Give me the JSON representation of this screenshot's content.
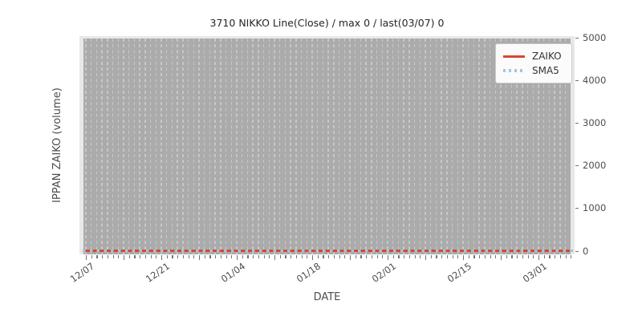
{
  "chart_data": {
    "type": "line",
    "title": "3710 NIKKO Line(Close) / max 0 / last(03/07) 0",
    "xlabel": "DATE",
    "ylabel": "IPPAN ZAIKO (volume)",
    "x_range": {
      "start": "12/07",
      "end": "03/07",
      "freq": "daily",
      "n_points": 91
    },
    "x_major_tick_labels": [
      "12/07",
      "12/21",
      "01/04",
      "01/18",
      "02/01",
      "02/15",
      "03/01"
    ],
    "x_major_tick_day_indices": [
      0,
      14,
      28,
      42,
      56,
      70,
      84
    ],
    "x_minor_tick_interval_days": 1,
    "x_midweek_tick_interval_days": 7,
    "ylim": [
      0,
      5000
    ],
    "yticks": [
      0,
      1000,
      2000,
      3000,
      4000,
      5000
    ],
    "y_axis_side": "right",
    "grid": "vertical-dashed-daily",
    "legend_position": "upper-right",
    "max_value": 0,
    "last_point": {
      "date": "03/07",
      "value": 0
    },
    "series": [
      {
        "name": "ZAIKO",
        "style": "solid",
        "color": "#d5492f",
        "constant_value": 0,
        "values": [
          0,
          0,
          0,
          0,
          0,
          0,
          0,
          0,
          0,
          0,
          0,
          0,
          0,
          0,
          0,
          0,
          0,
          0,
          0,
          0,
          0,
          0,
          0,
          0,
          0,
          0,
          0,
          0,
          0,
          0,
          0,
          0,
          0,
          0,
          0,
          0,
          0,
          0,
          0,
          0,
          0,
          0,
          0,
          0,
          0,
          0,
          0,
          0,
          0,
          0,
          0,
          0,
          0,
          0,
          0,
          0,
          0,
          0,
          0,
          0,
          0,
          0,
          0,
          0,
          0,
          0,
          0,
          0,
          0,
          0,
          0,
          0,
          0,
          0,
          0,
          0,
          0,
          0,
          0,
          0,
          0,
          0,
          0,
          0,
          0,
          0,
          0,
          0,
          0,
          0,
          0
        ]
      },
      {
        "name": "SMA5",
        "style": "dotted",
        "color": "#a4c4df",
        "constant_value": 0,
        "values": [
          0,
          0,
          0,
          0,
          0,
          0,
          0,
          0,
          0,
          0,
          0,
          0,
          0,
          0,
          0,
          0,
          0,
          0,
          0,
          0,
          0,
          0,
          0,
          0,
          0,
          0,
          0,
          0,
          0,
          0,
          0,
          0,
          0,
          0,
          0,
          0,
          0,
          0,
          0,
          0,
          0,
          0,
          0,
          0,
          0,
          0,
          0,
          0,
          0,
          0,
          0,
          0,
          0,
          0,
          0,
          0,
          0,
          0,
          0,
          0,
          0,
          0,
          0,
          0,
          0,
          0,
          0,
          0,
          0,
          0,
          0,
          0,
          0,
          0,
          0,
          0,
          0,
          0,
          0,
          0,
          0,
          0,
          0,
          0,
          0,
          0,
          0,
          0,
          0,
          0,
          0
        ]
      }
    ]
  },
  "colors": {
    "zaiko_line": "#d5492f",
    "sma5_dots": "#a4c4df",
    "plot_background": "#e8e8e8",
    "bars_region": "#ababab",
    "gridline_dash": "#c7c7c7",
    "tick_text": "#4d4d4d",
    "title_text": "#262626"
  }
}
